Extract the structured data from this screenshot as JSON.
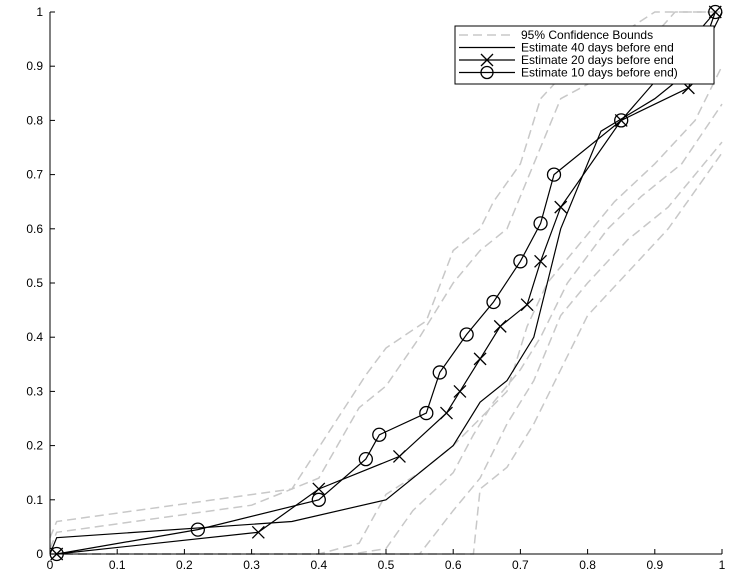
{
  "chart_data": {
    "type": "line",
    "title": "",
    "xlabel": "",
    "ylabel": "",
    "xlim": [
      0,
      1
    ],
    "ylim": [
      0,
      1
    ],
    "grid": false,
    "legend_position": "top-right",
    "x_ticks": [
      "0",
      "0.1",
      "0.2",
      "0.3",
      "0.4",
      "0.5",
      "0.6",
      "0.7",
      "0.8",
      "0.9",
      "1"
    ],
    "y_ticks": [
      "0",
      "0.1",
      "0.2",
      "0.3",
      "0.4",
      "0.5",
      "0.6",
      "0.7",
      "0.8",
      "0.9",
      "1"
    ],
    "colors": {
      "bounds": "#c8c8c8",
      "estimate": "#000000"
    },
    "series": [
      {
        "name": "95% Confidence Bounds",
        "style": "dashed",
        "lines": [
          {
            "x": [
              0.0,
              0.01,
              0.36,
              0.47,
              0.5,
              0.56,
              0.6,
              0.64,
              0.66,
              0.7,
              0.73,
              0.76,
              0.8,
              0.85,
              0.9,
              0.95,
              1.0
            ],
            "y": [
              0.03,
              0.06,
              0.12,
              0.33,
              0.38,
              0.43,
              0.56,
              0.6,
              0.65,
              0.72,
              0.84,
              0.88,
              0.92,
              0.96,
              1.0,
              1.0,
              1.0
            ]
          },
          {
            "x": [
              0.0,
              0.01,
              0.3,
              0.4,
              0.46,
              0.5,
              0.55,
              0.6,
              0.64,
              0.68,
              0.72,
              0.76,
              0.82,
              0.88,
              0.93,
              1.0
            ],
            "y": [
              0.01,
              0.04,
              0.09,
              0.14,
              0.27,
              0.31,
              0.4,
              0.5,
              0.56,
              0.6,
              0.72,
              0.84,
              0.88,
              0.93,
              1.0,
              1.0
            ]
          },
          {
            "x": [
              0.0,
              0.4,
              0.46,
              0.5,
              0.55,
              0.6,
              0.64,
              0.68,
              0.71,
              0.74,
              0.78,
              0.84,
              0.9,
              0.96,
              1.0
            ],
            "y": [
              0.0,
              0.0,
              0.02,
              0.11,
              0.15,
              0.2,
              0.25,
              0.3,
              0.42,
              0.5,
              0.56,
              0.65,
              0.72,
              0.8,
              0.9
            ]
          },
          {
            "x": [
              0.0,
              0.45,
              0.5,
              0.54,
              0.6,
              0.63,
              0.66,
              0.7,
              0.73,
              0.77,
              0.83,
              0.88,
              0.94,
              1.0
            ],
            "y": [
              0.0,
              0.0,
              0.01,
              0.08,
              0.15,
              0.22,
              0.28,
              0.34,
              0.4,
              0.5,
              0.6,
              0.66,
              0.72,
              0.83
            ]
          },
          {
            "x": [
              0.0,
              0.55,
              0.6,
              0.64,
              0.68,
              0.72,
              0.76,
              0.8,
              0.86,
              0.92,
              1.0
            ],
            "y": [
              0.0,
              0.0,
              0.08,
              0.14,
              0.24,
              0.32,
              0.44,
              0.5,
              0.58,
              0.64,
              0.76
            ]
          },
          {
            "x": [
              0.0,
              0.63,
              0.64,
              0.68,
              0.72,
              0.76,
              0.8,
              0.86,
              0.92,
              1.0
            ],
            "y": [
              0.0,
              0.0,
              0.12,
              0.16,
              0.24,
              0.34,
              0.44,
              0.52,
              0.6,
              0.74
            ]
          }
        ]
      },
      {
        "name": "Estimate 40 days before end",
        "style": "solid",
        "marker": "none",
        "x": [
          0.0,
          0.01,
          0.36,
          0.5,
          0.6,
          0.64,
          0.68,
          0.72,
          0.74,
          0.76,
          0.82,
          0.9,
          0.96,
          1.0
        ],
        "y": [
          0.0,
          0.03,
          0.06,
          0.1,
          0.2,
          0.28,
          0.32,
          0.4,
          0.5,
          0.6,
          0.78,
          0.84,
          0.9,
          1.0
        ]
      },
      {
        "name": "Estimate 20 days before end",
        "style": "solid",
        "marker": "x",
        "x": [
          0.01,
          0.31,
          0.4,
          0.52,
          0.59,
          0.61,
          0.64,
          0.67,
          0.71,
          0.73,
          0.76,
          0.85,
          0.95,
          0.99
        ],
        "y": [
          0.0,
          0.04,
          0.12,
          0.18,
          0.26,
          0.3,
          0.36,
          0.42,
          0.46,
          0.54,
          0.64,
          0.8,
          0.86,
          1.0
        ]
      },
      {
        "name": "Estimate 10 days before end)",
        "style": "solid",
        "marker": "o",
        "x": [
          0.01,
          0.22,
          0.4,
          0.47,
          0.49,
          0.56,
          0.58,
          0.62,
          0.66,
          0.7,
          0.73,
          0.75,
          0.85,
          0.99
        ],
        "y": [
          0.0,
          0.045,
          0.1,
          0.175,
          0.22,
          0.26,
          0.335,
          0.405,
          0.465,
          0.54,
          0.61,
          0.7,
          0.8,
          1.0
        ]
      }
    ]
  }
}
